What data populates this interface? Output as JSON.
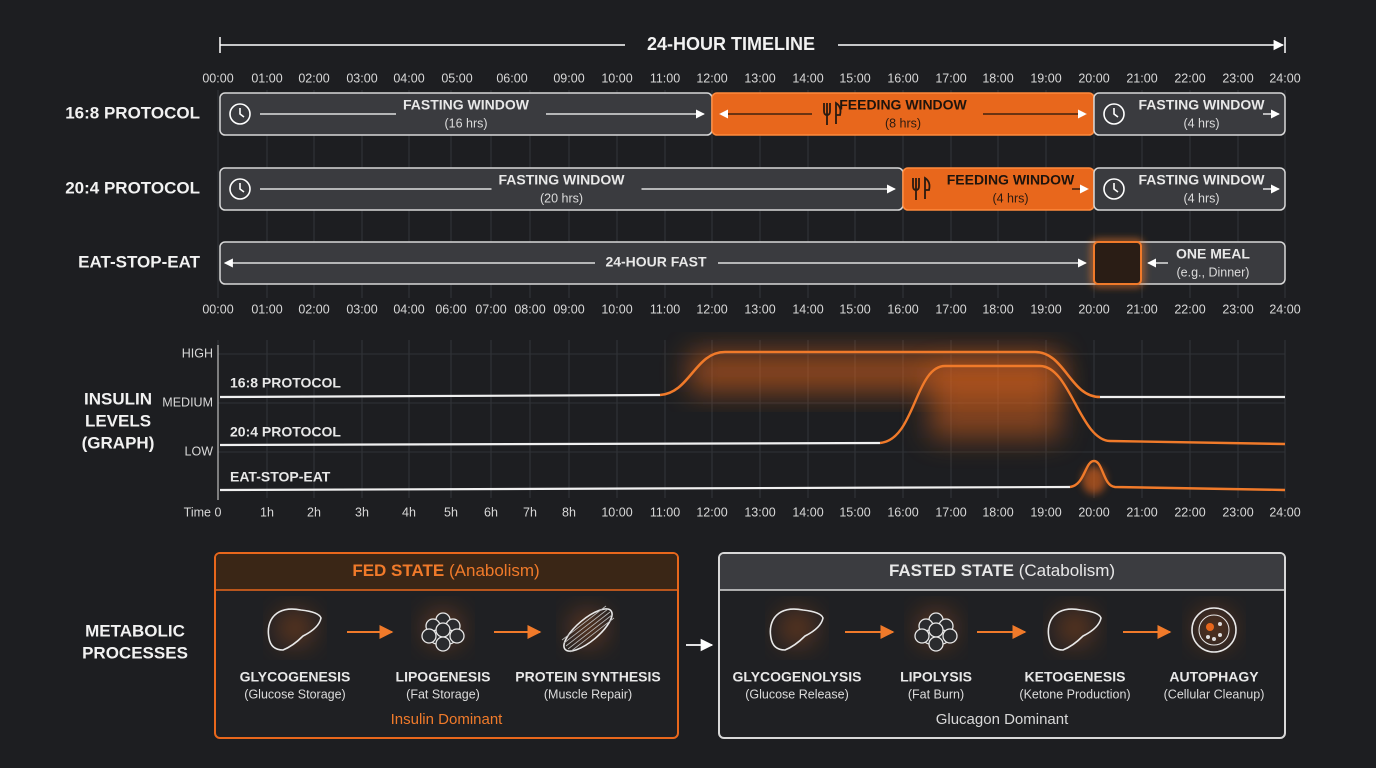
{
  "title": "24-HOUR TIMELINE",
  "hours_top": [
    "00:00",
    "01:00",
    "02:00",
    "03:00",
    "04:00",
    "05:00",
    "06:00",
    "09:00",
    "10:00",
    "11:00",
    "12:00",
    "13:00",
    "14:00",
    "15:00",
    "16:00",
    "17:00",
    "18:00",
    "19:00",
    "20:00",
    "21:00",
    "22:00",
    "23:00",
    "24:00"
  ],
  "hours_mid": [
    "00:00",
    "01:00",
    "02:00",
    "03:00",
    "04:00",
    "06:00",
    "07:00",
    "08:00",
    "09:00",
    "10:00",
    "11:00",
    "12:00",
    "13:00",
    "14:00",
    "15:00",
    "16:00",
    "17:00",
    "18:00",
    "19:00",
    "20:00",
    "21:00",
    "22:00",
    "23:00",
    "24:00"
  ],
  "protocols": [
    {
      "label": "16:8 PROTOCOL",
      "segments": [
        {
          "title": "FASTING WINDOW",
          "detail": "(16 hrs)"
        },
        {
          "title": "FEEDING WINDOW",
          "detail": "(8 hrs)"
        },
        {
          "title": "FASTING WINDOW",
          "detail": "(4 hrs)"
        }
      ]
    },
    {
      "label": "20:4 PROTOCOL",
      "segments": [
        {
          "title": "FASTING WINDOW",
          "detail": "(20 hrs)"
        },
        {
          "title": "FEEDING WINDOW",
          "detail": "(4 hrs)"
        },
        {
          "title": "FASTING WINDOW",
          "detail": "(4 hrs)"
        }
      ]
    },
    {
      "label": "EAT-STOP-EAT",
      "segments": [
        {
          "title": "24-HOUR FAST"
        },
        {
          "title": "ONE MEAL",
          "detail": "(e.g., Dinner)"
        }
      ]
    }
  ],
  "graph": {
    "label_lines": [
      "INSULIN",
      "LEVELS",
      "(GRAPH)"
    ],
    "y_levels": [
      "HIGH",
      "MEDIUM",
      "LOW"
    ],
    "curves": [
      "16:8 PROTOCOL",
      "20:4 PROTOCOL",
      "EAT-STOP-EAT"
    ],
    "time_title": "Time",
    "time_labels": [
      "0",
      "1h",
      "2h",
      "3h",
      "4h",
      "5h",
      "6h",
      "7h",
      "8h",
      "10:00",
      "11:00",
      "12:00",
      "13:00",
      "14:00",
      "15:00",
      "16:00",
      "17:00",
      "18:00",
      "19:00",
      "20:00",
      "21:00",
      "22:00",
      "23:00",
      "24:00"
    ]
  },
  "metabolic": {
    "label_lines": [
      "METABOLIC",
      "PROCESSES"
    ],
    "fed": {
      "title": "FED STATE",
      "subtitle": "(Anabolism)",
      "steps": [
        {
          "name": "GLYCOGENESIS",
          "detail": "(Glucose Storage)"
        },
        {
          "name": "LIPOGENESIS",
          "detail": "(Fat Storage)"
        },
        {
          "name": "PROTEIN SYNTHESIS",
          "detail": "(Muscle Repair)"
        }
      ],
      "footer": "Insulin Dominant"
    },
    "fasted": {
      "title": "FASTED STATE",
      "subtitle": "(Catabolism)",
      "steps": [
        {
          "name": "GLYCOGENOLYSIS",
          "detail": "(Glucose Release)"
        },
        {
          "name": "LIPOLYSIS",
          "detail": "(Fat Burn)"
        },
        {
          "name": "KETOGENESIS",
          "detail": "(Ketone Production)"
        },
        {
          "name": "AUTOPHAGY",
          "detail": "(Cellular Cleanup)"
        }
      ],
      "footer": "Glucagon Dominant"
    }
  }
}
